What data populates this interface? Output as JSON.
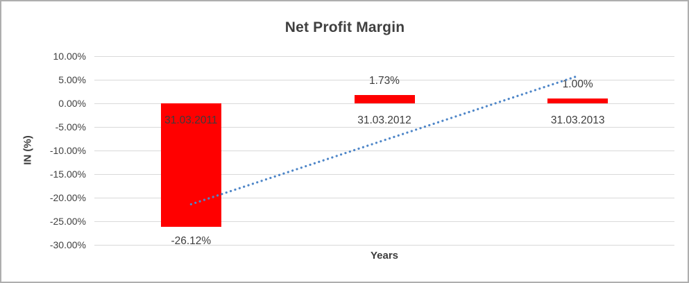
{
  "chart_data": {
    "type": "bar",
    "title": "Net Profit Margin",
    "xlabel": "Years",
    "ylabel": "IN (%)",
    "categories": [
      "31.03.2011",
      "31.03.2012",
      "31.03.2013"
    ],
    "values": [
      -26.12,
      1.73,
      1.0
    ],
    "value_labels": [
      "-26.12%",
      "1.73%",
      "1.00%"
    ],
    "ylim": [
      -30,
      10
    ],
    "ytick_step": 5,
    "ytick_labels": [
      "10.00%",
      "5.00%",
      "0.00%",
      "-5.00%",
      "-10.00%",
      "-15.00%",
      "-20.00%",
      "-25.00%",
      "-30.00%"
    ],
    "grid": true,
    "legend": "none",
    "bar_color": "#ff0000",
    "text_color": "#3c3c3c",
    "gridline_color": "#d9d9d9",
    "frame_border_color": "#aeaeae",
    "trendline": {
      "type": "linear",
      "style": "dotted",
      "color": "#4e86c8",
      "start_value": -21.4,
      "end_value": 5.8
    }
  }
}
